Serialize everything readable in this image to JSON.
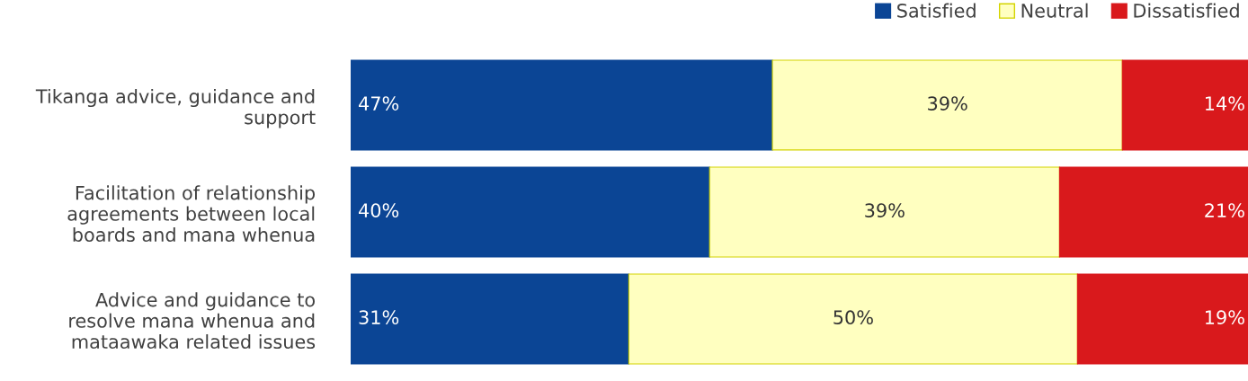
{
  "chart_data": {
    "type": "bar",
    "orientation": "horizontal",
    "stacked": true,
    "legend": "top right",
    "tick_labels": "y",
    "grid": false,
    "categories": [
      "Tikanga advice, guidance and\nsupport",
      "Facilitation of relationship\nagreements between local\nboards and mana whenua",
      "Advice and guidance to\nresolve mana whenua and\nmataawaka related issues"
    ],
    "series": [
      {
        "name": "Satisfied",
        "color": "#0b4595",
        "values": [
          47,
          40,
          31
        ],
        "value_labels": [
          "47%",
          "40%",
          "31%"
        ]
      },
      {
        "name": "Neutral",
        "color": "#ffffc0",
        "values": [
          39,
          39,
          50
        ],
        "value_labels": [
          "39%",
          "39%",
          "50%"
        ]
      },
      {
        "name": "Dissatisfied",
        "color": "#d9191c",
        "values": [
          14,
          21,
          19
        ],
        "value_labels": [
          "14%",
          "21%",
          "19%"
        ]
      }
    ]
  }
}
